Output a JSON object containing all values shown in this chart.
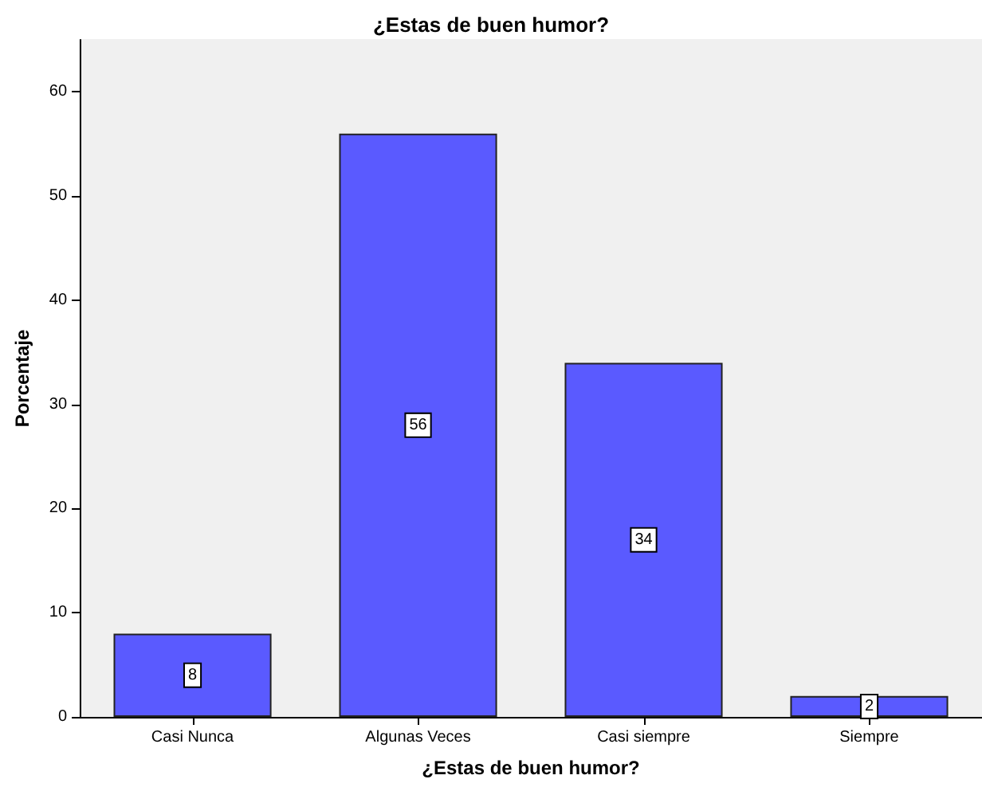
{
  "chart_data": {
    "type": "bar",
    "title": "¿Estas de buen humor?",
    "xlabel": "¿Estas de buen humor?",
    "ylabel": "Porcentaje",
    "categories": [
      "Casi Nunca",
      "Algunas Veces",
      "Casi siempre",
      "Siempre"
    ],
    "values": [
      8,
      56,
      34,
      2
    ],
    "color": "#5a5aff",
    "data_labels": true,
    "ylim": [
      0,
      65
    ],
    "yticks": [
      0,
      10,
      20,
      30,
      40,
      50,
      60
    ]
  }
}
